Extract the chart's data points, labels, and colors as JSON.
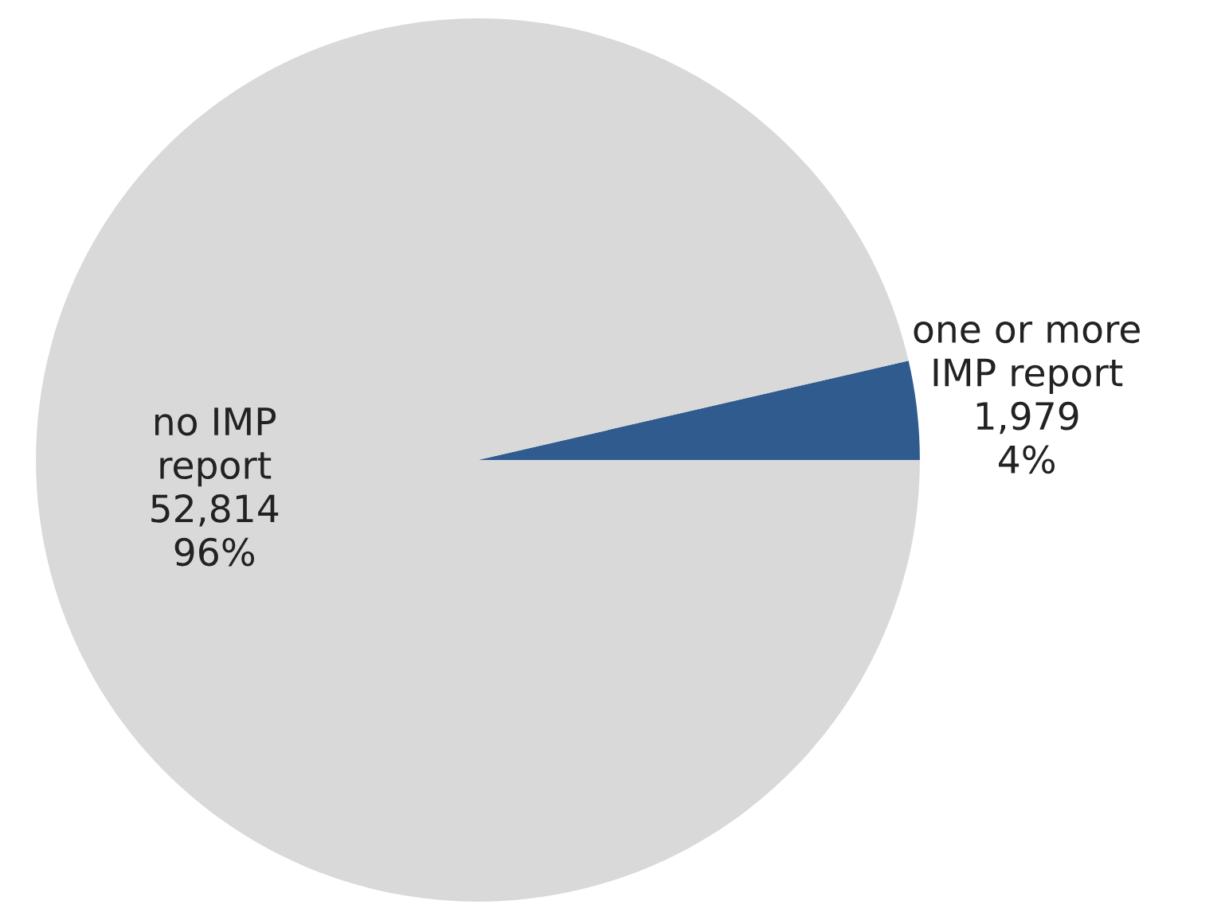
{
  "chart_data": {
    "type": "pie",
    "categories": [
      "one or more IMP report",
      "no IMP report"
    ],
    "values": [
      1979,
      52814
    ],
    "colors": [
      "#2f5b8f",
      "#d9d9d9"
    ],
    "value_labels": [
      "1,979\n4%",
      "52,814\n96%"
    ]
  }
}
